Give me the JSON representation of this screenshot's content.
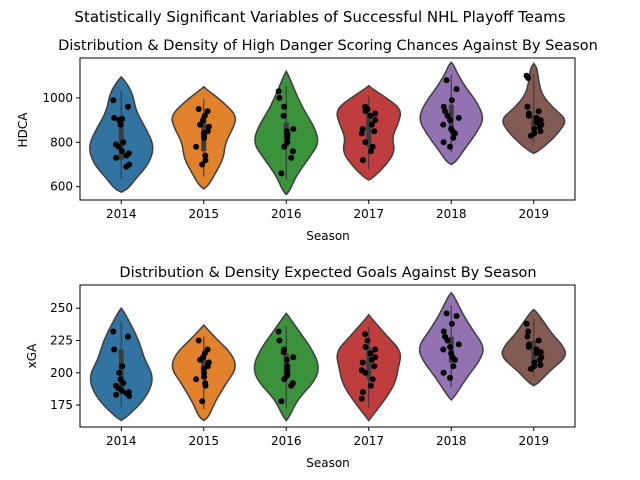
{
  "figure": {
    "suptitle": "Statistically Significant Variables of Successful NHL Playoff Teams"
  },
  "colors": {
    "series": [
      "#3274a1",
      "#e1812c",
      "#3a923a",
      "#c03d3e",
      "#9372b2",
      "#845b53"
    ],
    "points": "#000000",
    "box": "#3d3d3d",
    "outline": "#3f3f3f"
  },
  "chart_data": [
    {
      "type": "violin",
      "title": "Distribution & Density of High Danger Scoring Chances Against By Season",
      "xlabel": "Season",
      "ylabel": "HDCA",
      "ylim": [
        540,
        1180
      ],
      "yticks": [
        600,
        800,
        1000
      ],
      "categories": [
        "2014",
        "2015",
        "2016",
        "2017",
        "2018",
        "2019"
      ],
      "points": [
        [
          990,
          960,
          910,
          905,
          900,
          880,
          800,
          790,
          780,
          760,
          750,
          740,
          730,
          700,
          690
        ],
        [
          950,
          940,
          920,
          900,
          880,
          870,
          850,
          840,
          830,
          820,
          780,
          740,
          720,
          700
        ],
        [
          1030,
          1000,
          960,
          920,
          860,
          850,
          840,
          830,
          820,
          800,
          780,
          760,
          730,
          660
        ],
        [
          960,
          950,
          940,
          930,
          920,
          900,
          880,
          860,
          850,
          840,
          800,
          780,
          760,
          720
        ],
        [
          1080,
          1040,
          990,
          960,
          940,
          920,
          910,
          900,
          880,
          860,
          850,
          840,
          820,
          800,
          780
        ],
        [
          1100,
          1090,
          960,
          940,
          930,
          920,
          910,
          900,
          890,
          880,
          870,
          860,
          850,
          840,
          830
        ]
      ],
      "box": [
        [
          720,
          800,
          920
        ],
        [
          760,
          880,
          920
        ],
        [
          780,
          820,
          890
        ],
        [
          780,
          850,
          930
        ],
        [
          850,
          900,
          970
        ],
        [
          860,
          890,
          920
        ]
      ],
      "violin_range": [
        [
          575,
          1095
        ],
        [
          590,
          1050
        ],
        [
          565,
          1120
        ],
        [
          630,
          1055
        ],
        [
          700,
          1160
        ],
        [
          750,
          1155
        ]
      ],
      "density": [
        [
          [
            0.03,
            0.2
          ],
          [
            0.12,
            0.45
          ],
          [
            0.25,
            0.85
          ],
          [
            0.4,
            1.0
          ],
          [
            0.55,
            0.75
          ],
          [
            0.7,
            0.45
          ],
          [
            0.85,
            0.35
          ],
          [
            0.95,
            0.15
          ]
        ],
        [
          [
            0.04,
            0.15
          ],
          [
            0.15,
            0.35
          ],
          [
            0.3,
            0.6
          ],
          [
            0.45,
            0.65
          ],
          [
            0.6,
            0.9
          ],
          [
            0.72,
            1.0
          ],
          [
            0.86,
            0.55
          ],
          [
            0.96,
            0.15
          ]
        ],
        [
          [
            0.03,
            0.1
          ],
          [
            0.15,
            0.3
          ],
          [
            0.3,
            0.7
          ],
          [
            0.42,
            1.0
          ],
          [
            0.55,
            0.85
          ],
          [
            0.7,
            0.5
          ],
          [
            0.85,
            0.25
          ],
          [
            0.96,
            0.08
          ]
        ],
        [
          [
            0.03,
            0.15
          ],
          [
            0.15,
            0.5
          ],
          [
            0.3,
            0.8
          ],
          [
            0.45,
            0.7
          ],
          [
            0.6,
            0.9
          ],
          [
            0.75,
            1.0
          ],
          [
            0.88,
            0.5
          ],
          [
            0.97,
            0.1
          ]
        ],
        [
          [
            0.03,
            0.15
          ],
          [
            0.15,
            0.4
          ],
          [
            0.3,
            0.75
          ],
          [
            0.45,
            1.0
          ],
          [
            0.6,
            0.8
          ],
          [
            0.75,
            0.45
          ],
          [
            0.88,
            0.2
          ],
          [
            0.97,
            0.08
          ]
        ],
        [
          [
            0.03,
            0.15
          ],
          [
            0.12,
            0.45
          ],
          [
            0.25,
            0.8
          ],
          [
            0.38,
            1.0
          ],
          [
            0.5,
            0.6
          ],
          [
            0.65,
            0.25
          ],
          [
            0.8,
            0.15
          ],
          [
            0.95,
            0.1
          ]
        ]
      ]
    },
    {
      "type": "violin",
      "title": "Distribution & Density Expected Goals Against By Season",
      "xlabel": "Season",
      "ylabel": "xGA",
      "ylim": [
        158,
        268
      ],
      "yticks": [
        175,
        200,
        225,
        250
      ],
      "categories": [
        "2014",
        "2015",
        "2016",
        "2017",
        "2018",
        "2019"
      ],
      "points": [
        [
          232,
          228,
          218,
          205,
          200,
          195,
          192,
          190,
          188,
          186,
          185,
          184,
          183,
          182
        ],
        [
          225,
          218,
          215,
          212,
          210,
          208,
          205,
          203,
          200,
          197,
          195,
          192,
          190,
          178
        ],
        [
          232,
          225,
          218,
          216,
          212,
          210,
          205,
          202,
          200,
          198,
          195,
          192,
          190,
          178
        ],
        [
          230,
          225,
          220,
          218,
          215,
          212,
          210,
          208,
          205,
          202,
          200,
          195,
          190,
          185,
          180
        ],
        [
          246,
          244,
          238,
          232,
          228,
          225,
          222,
          220,
          218,
          215,
          212,
          210,
          205,
          200,
          196
        ],
        [
          238,
          232,
          228,
          225,
          222,
          220,
          218,
          216,
          215,
          212,
          210,
          208,
          206,
          205,
          203
        ]
      ],
      "box": [
        [
          186,
          193,
          218
        ],
        [
          195,
          205,
          212
        ],
        [
          195,
          205,
          215
        ],
        [
          195,
          210,
          220
        ],
        [
          208,
          218,
          228
        ],
        [
          210,
          215,
          225
        ]
      ],
      "violin_range": [
        [
          163,
          250
        ],
        [
          163,
          237
        ],
        [
          163,
          246
        ],
        [
          163,
          245
        ],
        [
          179,
          262
        ],
        [
          190,
          249
        ]
      ],
      "density": [
        [
          [
            0.04,
            0.2
          ],
          [
            0.2,
            0.75
          ],
          [
            0.38,
            1.0
          ],
          [
            0.55,
            0.7
          ],
          [
            0.7,
            0.55
          ],
          [
            0.85,
            0.3
          ],
          [
            0.96,
            0.1
          ]
        ],
        [
          [
            0.04,
            0.15
          ],
          [
            0.2,
            0.35
          ],
          [
            0.4,
            0.7
          ],
          [
            0.55,
            1.0
          ],
          [
            0.7,
            0.85
          ],
          [
            0.85,
            0.4
          ],
          [
            0.96,
            0.1
          ]
        ],
        [
          [
            0.04,
            0.1
          ],
          [
            0.2,
            0.35
          ],
          [
            0.38,
            0.9
          ],
          [
            0.52,
            1.0
          ],
          [
            0.68,
            0.75
          ],
          [
            0.85,
            0.35
          ],
          [
            0.96,
            0.1
          ]
        ],
        [
          [
            0.04,
            0.1
          ],
          [
            0.2,
            0.5
          ],
          [
            0.35,
            0.8
          ],
          [
            0.5,
            0.9
          ],
          [
            0.65,
            1.0
          ],
          [
            0.8,
            0.55
          ],
          [
            0.96,
            0.1
          ]
        ],
        [
          [
            0.04,
            0.12
          ],
          [
            0.2,
            0.45
          ],
          [
            0.38,
            0.9
          ],
          [
            0.5,
            1.0
          ],
          [
            0.65,
            0.65
          ],
          [
            0.8,
            0.35
          ],
          [
            0.96,
            0.1
          ]
        ],
        [
          [
            0.04,
            0.15
          ],
          [
            0.2,
            0.5
          ],
          [
            0.38,
            1.0
          ],
          [
            0.52,
            0.9
          ],
          [
            0.68,
            0.55
          ],
          [
            0.84,
            0.3
          ],
          [
            0.96,
            0.1
          ]
        ]
      ]
    }
  ]
}
